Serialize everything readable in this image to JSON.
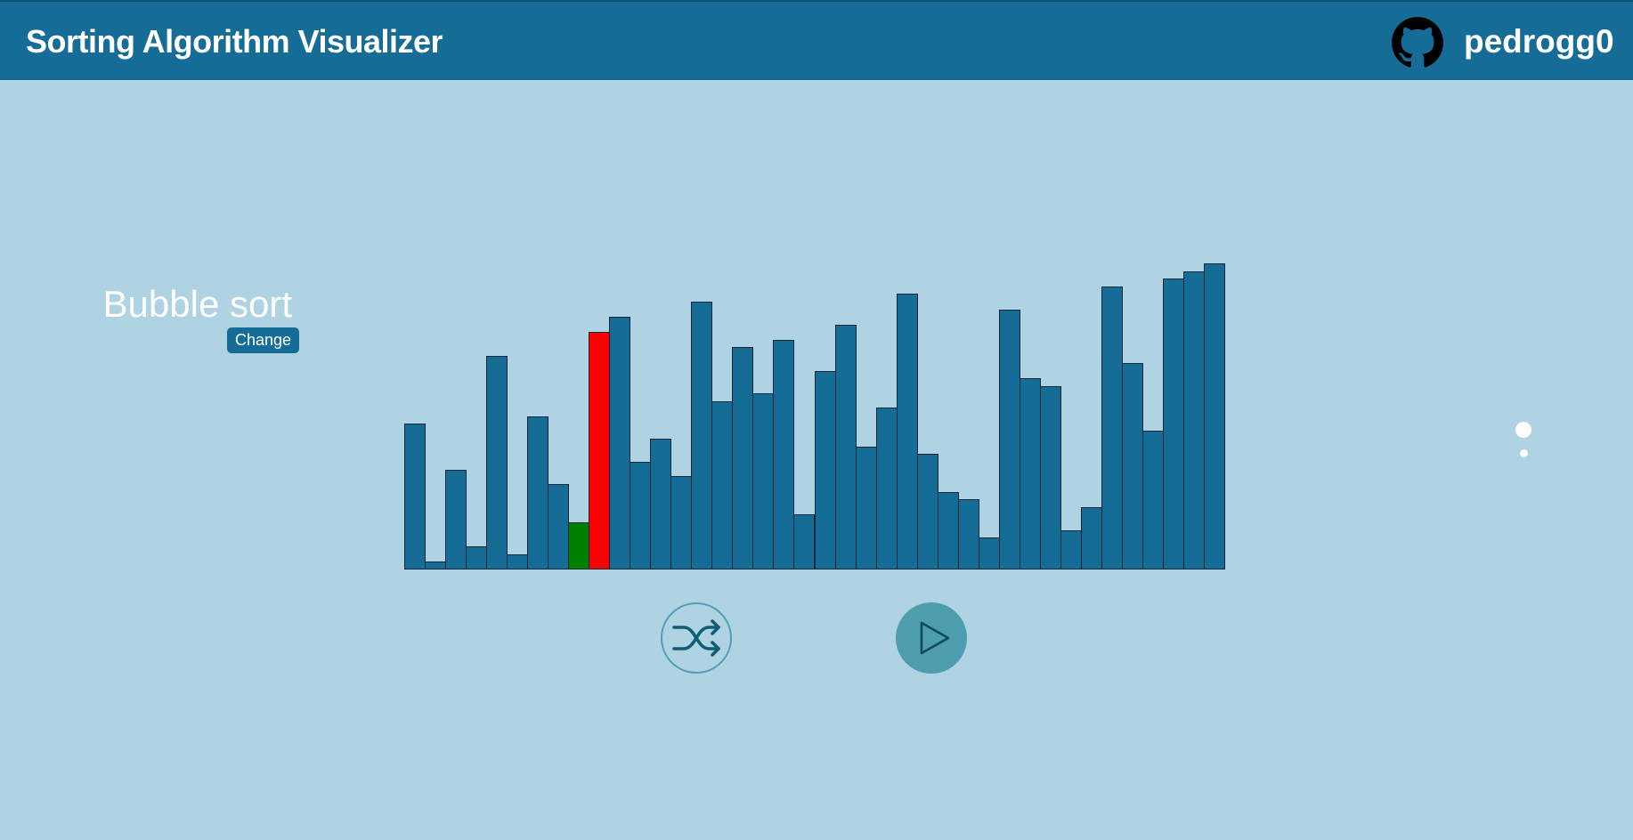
{
  "header": {
    "title": "Sorting Algorithm Visualizer",
    "username": "pedrogg0"
  },
  "algorithm": {
    "name": "Bubble sort",
    "change_label": "Change"
  },
  "colors": {
    "header_bg": "#156c96",
    "page_bg": "#afd3e3",
    "bar_default": "#156c96",
    "bar_compare_current": "#ff0000",
    "bar_compare_next": "#008000",
    "play_button_bg": "#4d9daf"
  },
  "controls": {
    "shuffle_icon": "shuffle-icon",
    "play_icon": "play-icon"
  },
  "chart_data": {
    "type": "bar",
    "title": "",
    "xlabel": "",
    "ylabel": "",
    "ylim": [
      0,
      345
    ],
    "values": [
      164,
      9,
      112,
      26,
      241,
      17,
      173,
      96,
      53,
      268,
      285,
      121,
      147,
      105,
      302,
      190,
      251,
      199,
      259,
      62,
      224,
      276,
      138,
      183,
      311,
      130,
      87,
      79,
      36,
      293,
      216,
      207,
      44,
      70,
      319,
      233,
      156,
      328,
      336,
      345
    ],
    "states": [
      "default",
      "default",
      "default",
      "default",
      "default",
      "default",
      "default",
      "default",
      "compare-next",
      "compare-current",
      "default",
      "default",
      "default",
      "default",
      "default",
      "default",
      "default",
      "default",
      "default",
      "default",
      "default",
      "default",
      "default",
      "default",
      "default",
      "default",
      "default",
      "default",
      "default",
      "default",
      "default",
      "default",
      "default",
      "default",
      "default",
      "default",
      "default",
      "default",
      "default",
      "default"
    ]
  }
}
